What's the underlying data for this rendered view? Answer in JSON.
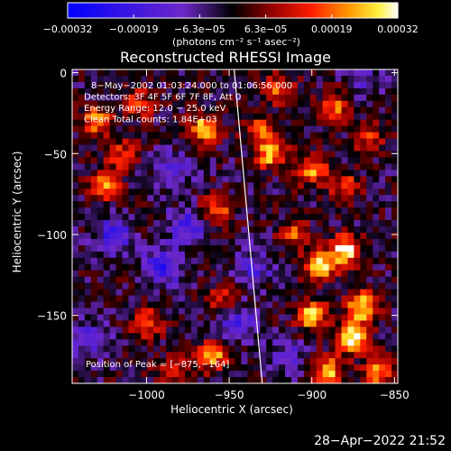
{
  "chart_data": {
    "type": "heatmap",
    "title": "Reconstructed RHESSI Image",
    "xlabel": "Heliocentric X (arcsec)",
    "ylabel": "Heliocentric Y (arcsec)",
    "xlim": [
      -1045,
      -848
    ],
    "ylim": [
      -192,
      2
    ],
    "x_ticks": [
      -1000,
      -950,
      -900,
      -850
    ],
    "x_tick_labels": [
      "−1000",
      "−950",
      "−900",
      "−850"
    ],
    "y_ticks": [
      0,
      -50,
      -100,
      -150
    ],
    "y_tick_labels": [
      "0",
      "−50",
      "−100",
      "−150"
    ],
    "colorbar": {
      "range": [
        -0.00032,
        0.00032
      ],
      "tick_labels": [
        "−0.00032",
        "−0.00019",
        "−6.3e−05",
        "6.3e−05",
        "0.00019",
        "0.00032"
      ],
      "units": "(photons cm⁻² s⁻¹ asec⁻²)"
    },
    "annotations": [
      "8−May−2002 01:03:24.000 to 01:06:56.000",
      "Detectors: 3F 4F 5F 6F 7F 8F, Att 0",
      "Energy Range: 12.0 − 25.0 keV",
      "Clean     Total counts: 1.84E+03"
    ],
    "peak_label": "Position of Peak = [−875,−164]",
    "peak": [
      -875,
      -164
    ],
    "limb_line": [
      [
        -947,
        2
      ],
      [
        -930,
        -192
      ]
    ],
    "hot_spots": [
      {
        "x": -1030,
        "y": -30,
        "w": 0.7
      },
      {
        "x": -1025,
        "y": -70,
        "w": 0.6
      },
      {
        "x": -1015,
        "y": -50,
        "w": 0.5
      },
      {
        "x": -1005,
        "y": -20,
        "w": 0.5
      },
      {
        "x": -1000,
        "y": -155,
        "w": 0.6
      },
      {
        "x": -985,
        "y": -185,
        "w": 0.5
      },
      {
        "x": -965,
        "y": -35,
        "w": 0.8
      },
      {
        "x": -958,
        "y": -85,
        "w": 0.6
      },
      {
        "x": -955,
        "y": -140,
        "w": 0.4
      },
      {
        "x": -960,
        "y": -175,
        "w": 0.7
      },
      {
        "x": -932,
        "y": -35,
        "w": 0.5
      },
      {
        "x": -925,
        "y": -50,
        "w": 0.8
      },
      {
        "x": -920,
        "y": -10,
        "w": 0.6
      },
      {
        "x": -910,
        "y": -100,
        "w": 0.5
      },
      {
        "x": -900,
        "y": -60,
        "w": 0.7
      },
      {
        "x": -895,
        "y": -120,
        "w": 0.8
      },
      {
        "x": -900,
        "y": -150,
        "w": 0.8
      },
      {
        "x": -885,
        "y": -20,
        "w": 0.6
      },
      {
        "x": -880,
        "y": -70,
        "w": 0.5
      },
      {
        "x": -880,
        "y": -110,
        "w": 0.9
      },
      {
        "x": -875,
        "y": -164,
        "w": 1.0
      },
      {
        "x": -870,
        "y": -145,
        "w": 0.9
      },
      {
        "x": -865,
        "y": -40,
        "w": 0.5
      },
      {
        "x": -860,
        "y": -185,
        "w": 0.7
      },
      {
        "x": -890,
        "y": -185,
        "w": 0.8
      }
    ],
    "cold_spots": [
      {
        "x": -1020,
        "y": -100,
        "w": 0.8
      },
      {
        "x": -990,
        "y": -120,
        "w": 0.9
      },
      {
        "x": -975,
        "y": -95,
        "w": 0.8
      },
      {
        "x": -985,
        "y": -60,
        "w": 0.6
      },
      {
        "x": -945,
        "y": -155,
        "w": 0.7
      },
      {
        "x": -935,
        "y": -120,
        "w": 0.6
      },
      {
        "x": -1035,
        "y": -165,
        "w": 0.6
      },
      {
        "x": -915,
        "y": -175,
        "w": 0.5
      },
      {
        "x": -870,
        "y": -5,
        "w": 0.5
      }
    ]
  },
  "footer": {
    "timestamp": "28−Apr−2022 21:52"
  }
}
